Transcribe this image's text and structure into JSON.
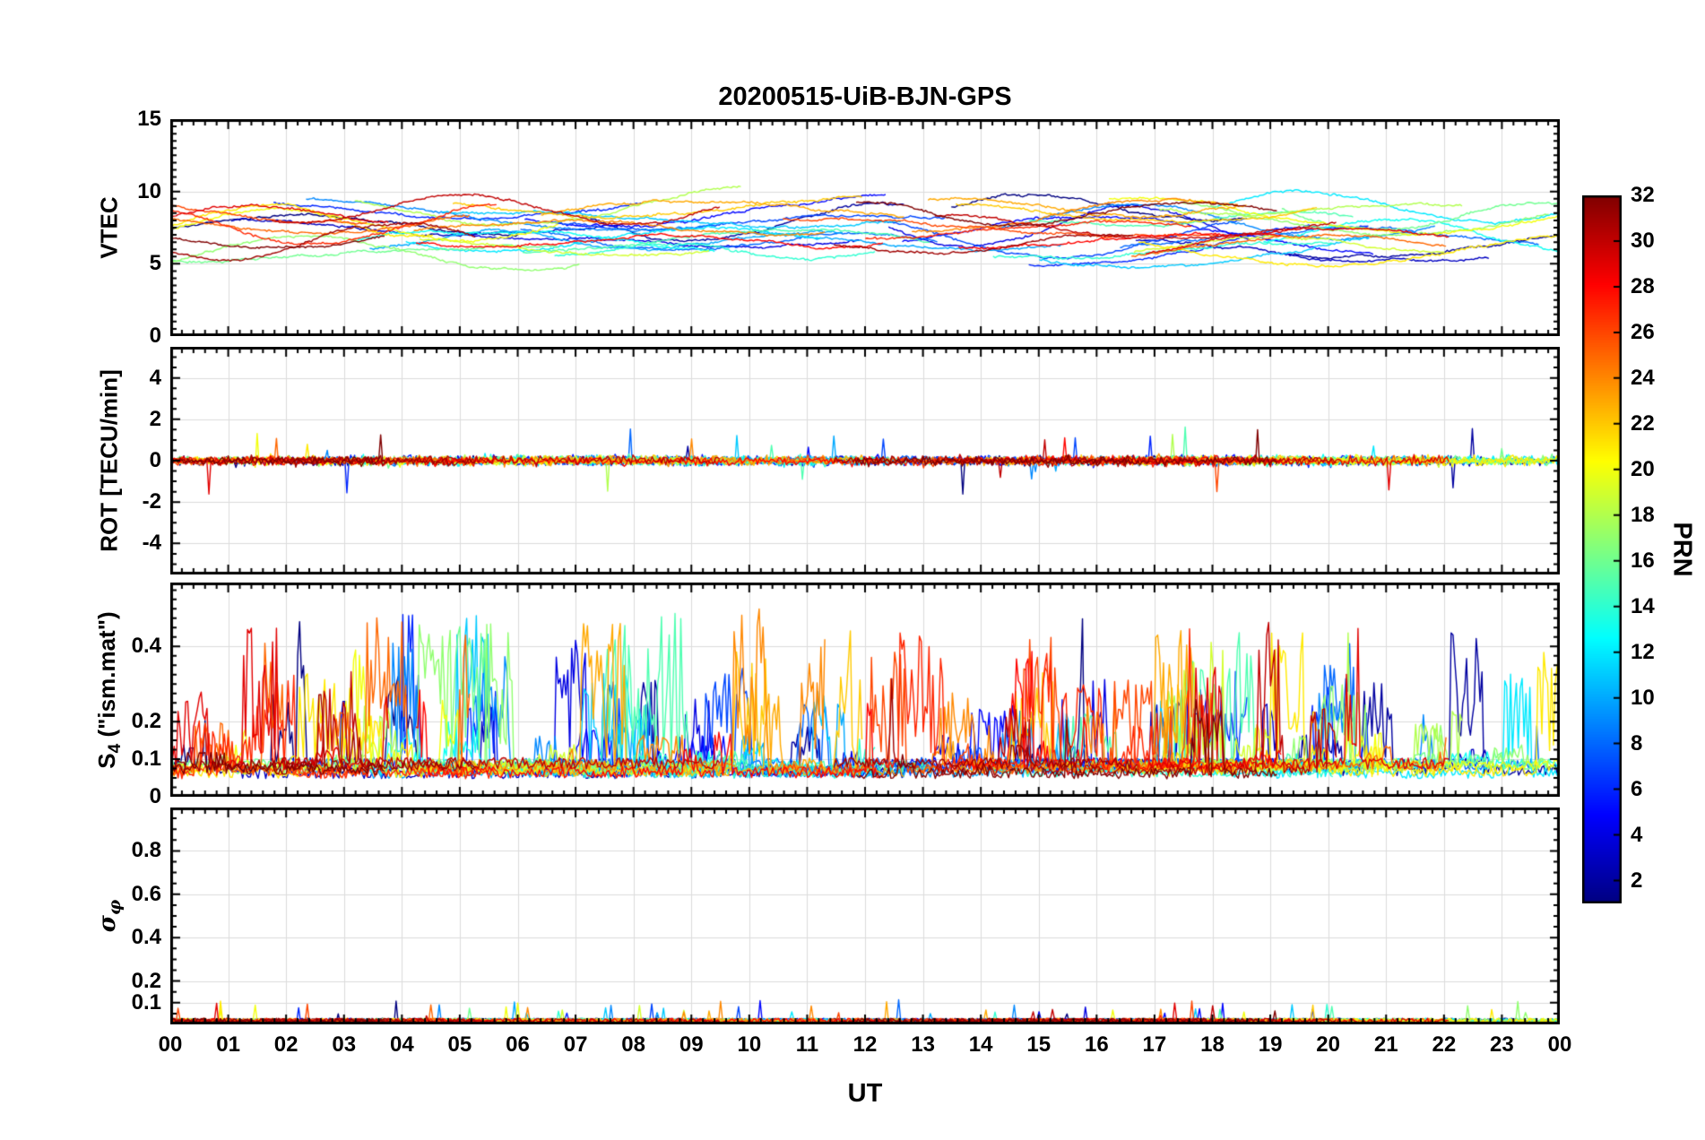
{
  "chart_data": {
    "type": "line",
    "title": "20200515-UiB-BJN-GPS",
    "xlabel": "UT",
    "x_range_hours": [
      0,
      24
    ],
    "x_tick_labels": [
      "00",
      "01",
      "02",
      "03",
      "04",
      "05",
      "06",
      "07",
      "08",
      "09",
      "10",
      "11",
      "12",
      "13",
      "14",
      "15",
      "16",
      "17",
      "18",
      "19",
      "20",
      "21",
      "22",
      "23",
      "00"
    ],
    "x_minor_step_hours": 0.2,
    "grid": true,
    "legend_position": "none",
    "colorbar": {
      "label": "PRN",
      "min": 1,
      "max": 32,
      "tick_values": [
        2,
        4,
        6,
        8,
        10,
        12,
        14,
        16,
        18,
        20,
        22,
        24,
        26,
        28,
        30,
        32
      ],
      "colormap": "jet",
      "bottom_color": "#00008f",
      "top_color": "#800000"
    },
    "prn_range": [
      1,
      32
    ],
    "panels": [
      {
        "id": "vtec",
        "ylabel": "VTEC",
        "ylim": [
          0,
          15
        ],
        "ytick_values": [
          0,
          5,
          10,
          15
        ],
        "ytick_labels": [
          "0",
          "5",
          "10",
          "15"
        ],
        "y_minor_step": 0.5,
        "summary": "VTEC arcs from many GPS PRNs, values mostly between 5 and 10 TECU across the whole day, extremes about 4 to 12 TECU"
      },
      {
        "id": "rot",
        "ylabel": "ROT [TECU/min]",
        "ylim": [
          -5.5,
          5.5
        ],
        "ytick_values": [
          -4,
          -2,
          0,
          2,
          4
        ],
        "ytick_labels": [
          "-4",
          "-2",
          "0",
          "2",
          "4"
        ],
        "y_minor_step": 0.5,
        "summary": "ROT noise centred on 0, mostly within ±0.5 TECU/min, isolated spikes up to about ±2"
      },
      {
        "id": "s4",
        "ylabel_main": "S",
        "ylabel_sub": "4",
        "ylabel_rest": " (\"ism.mat\")",
        "ylabel_text": "S4 (\"ism.mat\")",
        "ylim": [
          0,
          0.57
        ],
        "ytick_values": [
          0,
          0.1,
          0.2,
          0.4
        ],
        "ytick_labels": [
          "0",
          "0.1",
          "0.2",
          "0.4"
        ],
        "y_minor_step": 0.025,
        "summary": "S4 amplitude scintillation index: baseline about 0.05-0.1 with frequent spikes 0.2-0.45, maximum near 0.52"
      },
      {
        "id": "sigma_phi",
        "ylabel_main": "σ",
        "ylabel_sub": "φ",
        "ylabel_text": "σφ",
        "ylim": [
          0,
          1.0
        ],
        "ytick_values": [
          0.1,
          0.2,
          0.4,
          0.6,
          0.8
        ],
        "ytick_labels": [
          "0.1",
          "0.2",
          "0.4",
          "0.6",
          "0.8"
        ],
        "y_minor_step": 0.05,
        "summary": "Phase scintillation sigma-phi stays near zero, mostly below 0.05 for all PRNs"
      }
    ],
    "value_summary": {
      "vtec_range_tecu": [
        3.9,
        11.8
      ],
      "vtec_typical_band_tecu": [
        5.5,
        10.0
      ],
      "rot_noise_band_tecu_per_min": 0.5,
      "rot_extreme_spikes_tecu_per_min": 2.0,
      "s4_baseline": 0.07,
      "s4_peak": 0.53,
      "sigma_phi_baseline": 0.02,
      "sigma_phi_peak": 0.1
    }
  }
}
